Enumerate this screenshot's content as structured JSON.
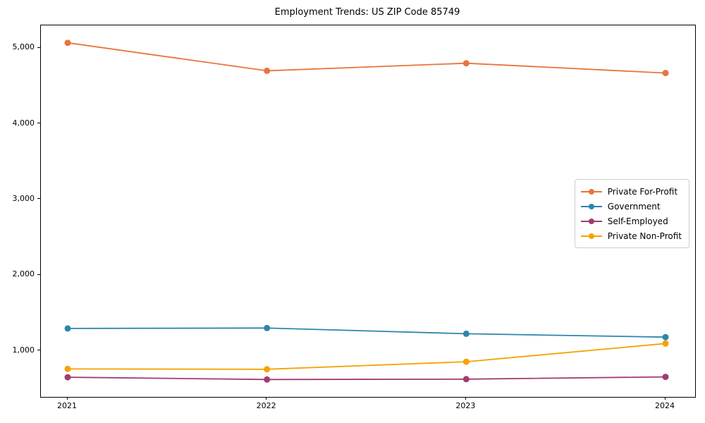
{
  "title": "Employment Trends: US ZIP Code 85749",
  "chart_data": {
    "type": "line",
    "title": "Employment Trends: US ZIP Code 85749",
    "xlabel": "",
    "ylabel": "",
    "x": [
      2021,
      2022,
      2023,
      2024
    ],
    "xtick_labels": [
      "2021",
      "2022",
      "2023",
      "2024"
    ],
    "yticks": [
      1000,
      2000,
      3000,
      4000,
      5000
    ],
    "ytick_labels": [
      "1,000",
      "2,000",
      "3,000",
      "4,000",
      "5,000"
    ],
    "ylim": [
      390,
      5300
    ],
    "grid": false,
    "legend_position": "center right",
    "series": [
      {
        "name": "Private For-Profit",
        "color": "#e8743b",
        "values": [
          5070,
          4700,
          4800,
          4670
        ]
      },
      {
        "name": "Government",
        "color": "#2e86ab",
        "values": [
          1295,
          1300,
          1225,
          1180
        ]
      },
      {
        "name": "Self-Employed",
        "color": "#a23b72",
        "values": [
          650,
          620,
          625,
          655
        ]
      },
      {
        "name": "Private Non-Profit",
        "color": "#f5a201",
        "values": [
          760,
          755,
          855,
          1095
        ]
      }
    ]
  }
}
